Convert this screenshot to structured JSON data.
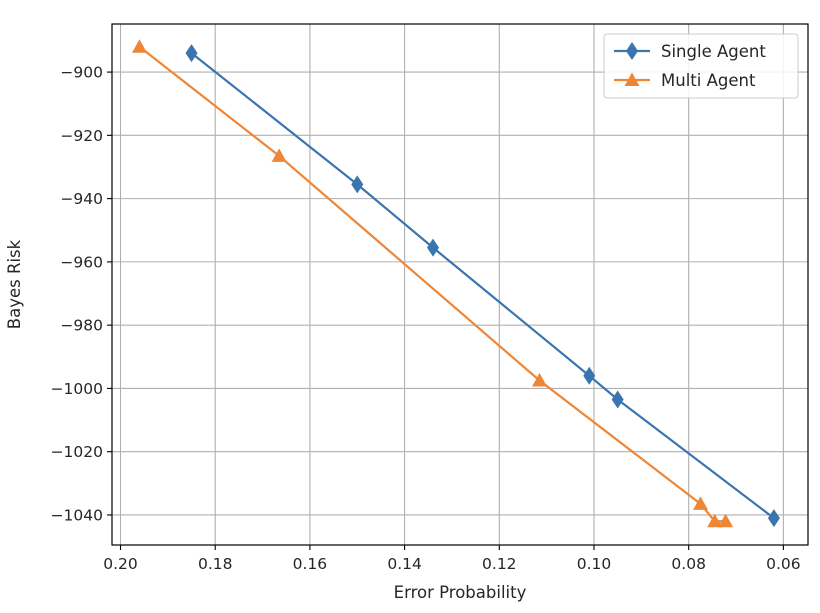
{
  "chart_data": {
    "type": "line",
    "title": "",
    "xlabel": "Error Probability",
    "ylabel": "Bayes Risk",
    "x_reversed": true,
    "xlim": [
      0.2018,
      0.0548
    ],
    "ylim": [
      -1049.5,
      -884.8
    ],
    "xticks": [
      0.2,
      0.18,
      0.16,
      0.14,
      0.12,
      0.1,
      0.08,
      0.06
    ],
    "xtick_labels": [
      "0.20",
      "0.18",
      "0.16",
      "0.14",
      "0.12",
      "0.10",
      "0.08",
      "0.06"
    ],
    "yticks": [
      -900,
      -920,
      -940,
      -960,
      -980,
      -1000,
      -1020,
      -1040
    ],
    "ytick_labels": [
      "−900",
      "−920",
      "−940",
      "−960",
      "−980",
      "−1000",
      "−1020",
      "−1040"
    ],
    "grid": true,
    "legend_position": "top-right",
    "series": [
      {
        "name": "Single Agent",
        "color": "#3b75af",
        "marker": "diamond",
        "x": [
          0.185,
          0.15,
          0.134,
          0.101,
          0.095,
          0.062
        ],
        "y": [
          -894,
          -935.5,
          -955.5,
          -996,
          -1003.5,
          -1041
        ]
      },
      {
        "name": "Multi Agent",
        "color": "#ef8636",
        "marker": "triangle",
        "x": [
          0.196,
          0.1665,
          0.1115,
          0.0775,
          0.0745,
          0.0722
        ],
        "y": [
          -892,
          -926.5,
          -997.5,
          -1036.5,
          -1042,
          -1042
        ]
      }
    ]
  }
}
